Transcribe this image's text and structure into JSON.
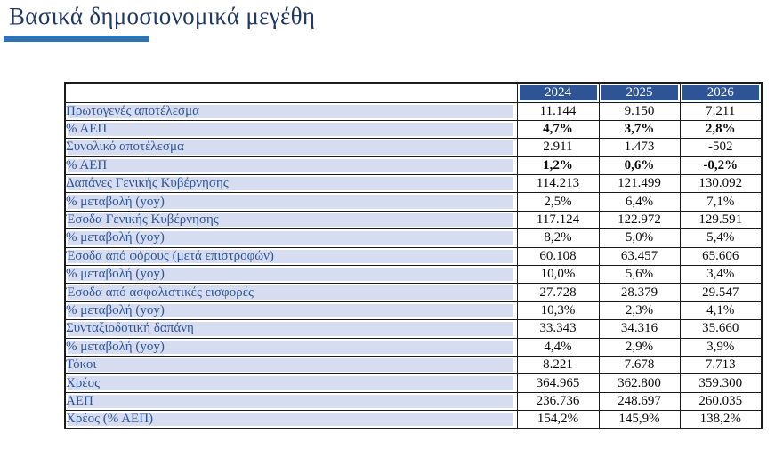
{
  "title": "Βασικά δημοσιονομικά μεγέθη",
  "colors": {
    "title_text": "#1F3864",
    "accent_bar": "#2E74B5",
    "header_bg": "#2F5496",
    "header_text": "#FFFFFF",
    "label_bg": "#D6DDF0",
    "label_text": "#2F5496",
    "value_text": "#0A0A0A",
    "border": "#1B1B1B"
  },
  "table": {
    "years": [
      "2024",
      "2025",
      "2026"
    ],
    "rows": [
      {
        "label": "Πρωτογενές αποτέλεσμα",
        "values": [
          "11.144",
          "9.150",
          "7.211"
        ],
        "bold": false
      },
      {
        "label": "% ΑΕΠ",
        "values": [
          "4,7%",
          "3,7%",
          "2,8%"
        ],
        "bold": true
      },
      {
        "label": "Συνολικό αποτέλεσμα",
        "values": [
          "2.911",
          "1.473",
          "-502"
        ],
        "bold": false
      },
      {
        "label": "% ΑΕΠ",
        "values": [
          "1,2%",
          "0,6%",
          "-0,2%"
        ],
        "bold": true
      },
      {
        "label": "Δαπάνες Γενικής Κυβέρνησης",
        "values": [
          "114.213",
          "121.499",
          "130.092"
        ],
        "bold": false
      },
      {
        "label": "% μεταβολή (yoy)",
        "values": [
          "2,5%",
          "6,4%",
          "7,1%"
        ],
        "bold": false
      },
      {
        "label": "Έσοδα Γενικής Κυβέρνησης",
        "values": [
          "117.124",
          "122.972",
          "129.591"
        ],
        "bold": false
      },
      {
        "label": "% μεταβολή (yoy)",
        "values": [
          "8,2%",
          "5,0%",
          "5,4%"
        ],
        "bold": false
      },
      {
        "label": "Έσοδα από φόρους (μετά επιστροφών)",
        "values": [
          "60.108",
          "63.457",
          "65.606"
        ],
        "bold": false
      },
      {
        "label": "% μεταβολή (yoy)",
        "values": [
          "10,0%",
          "5,6%",
          "3,4%"
        ],
        "bold": false
      },
      {
        "label": "Έσοδα από ασφαλιστικές εισφορές",
        "values": [
          "27.728",
          "28.379",
          "29.547"
        ],
        "bold": false
      },
      {
        "label": "% μεταβολή (yoy)",
        "values": [
          "10,3%",
          "2,3%",
          "4,1%"
        ],
        "bold": false
      },
      {
        "label": "Συνταξιοδοτική δαπάνη",
        "values": [
          "33.343",
          "34.316",
          "35.660"
        ],
        "bold": false
      },
      {
        "label": "% μεταβολή (yoy)",
        "values": [
          "4,4%",
          "2,9%",
          "3,9%"
        ],
        "bold": false
      },
      {
        "label": "Τόκοι",
        "values": [
          "8.221",
          "7.678",
          "7.713"
        ],
        "bold": false
      },
      {
        "label": "Χρέος",
        "values": [
          "364.965",
          "362.800",
          "359.300"
        ],
        "bold": false
      },
      {
        "label": "ΑΕΠ",
        "values": [
          "236.736",
          "248.697",
          "260.035"
        ],
        "bold": false
      },
      {
        "label": "Χρέος (% ΑΕΠ)",
        "values": [
          "154,2%",
          "145,9%",
          "138,2%"
        ],
        "bold": false
      }
    ]
  },
  "chart_data": {
    "type": "table",
    "title": "Βασικά δημοσιονομικά μεγέθη",
    "columns": [
      "",
      "2024",
      "2025",
      "2026"
    ],
    "rows": [
      [
        "Πρωτογενές αποτέλεσμα",
        "11.144",
        "9.150",
        "7.211"
      ],
      [
        "% ΑΕΠ",
        "4,7%",
        "3,7%",
        "2,8%"
      ],
      [
        "Συνολικό αποτέλεσμα",
        "2.911",
        "1.473",
        "-502"
      ],
      [
        "% ΑΕΠ",
        "1,2%",
        "0,6%",
        "-0,2%"
      ],
      [
        "Δαπάνες Γενικής Κυβέρνησης",
        "114.213",
        "121.499",
        "130.092"
      ],
      [
        "% μεταβολή (yoy)",
        "2,5%",
        "6,4%",
        "7,1%"
      ],
      [
        "Έσοδα Γενικής Κυβέρνησης",
        "117.124",
        "122.972",
        "129.591"
      ],
      [
        "% μεταβολή (yoy)",
        "8,2%",
        "5,0%",
        "5,4%"
      ],
      [
        "Έσοδα από φόρους (μετά επιστροφών)",
        "60.108",
        "63.457",
        "65.606"
      ],
      [
        "% μεταβολή (yoy)",
        "10,0%",
        "5,6%",
        "3,4%"
      ],
      [
        "Έσοδα από ασφαλιστικές εισφορές",
        "27.728",
        "28.379",
        "29.547"
      ],
      [
        "% μεταβολή (yoy)",
        "10,3%",
        "2,3%",
        "4,1%"
      ],
      [
        "Συνταξιοδοτική δαπάνη",
        "33.343",
        "34.316",
        "35.660"
      ],
      [
        "% μεταβολή (yoy)",
        "4,4%",
        "2,9%",
        "3,9%"
      ],
      [
        "Τόκοι",
        "8.221",
        "7.678",
        "7.713"
      ],
      [
        "Χρέος",
        "364.965",
        "362.800",
        "359.300"
      ],
      [
        "ΑΕΠ",
        "236.736",
        "248.697",
        "260.035"
      ],
      [
        "Χρέος (% ΑΕΠ)",
        "154,2%",
        "145,9%",
        "138,2%"
      ]
    ]
  }
}
